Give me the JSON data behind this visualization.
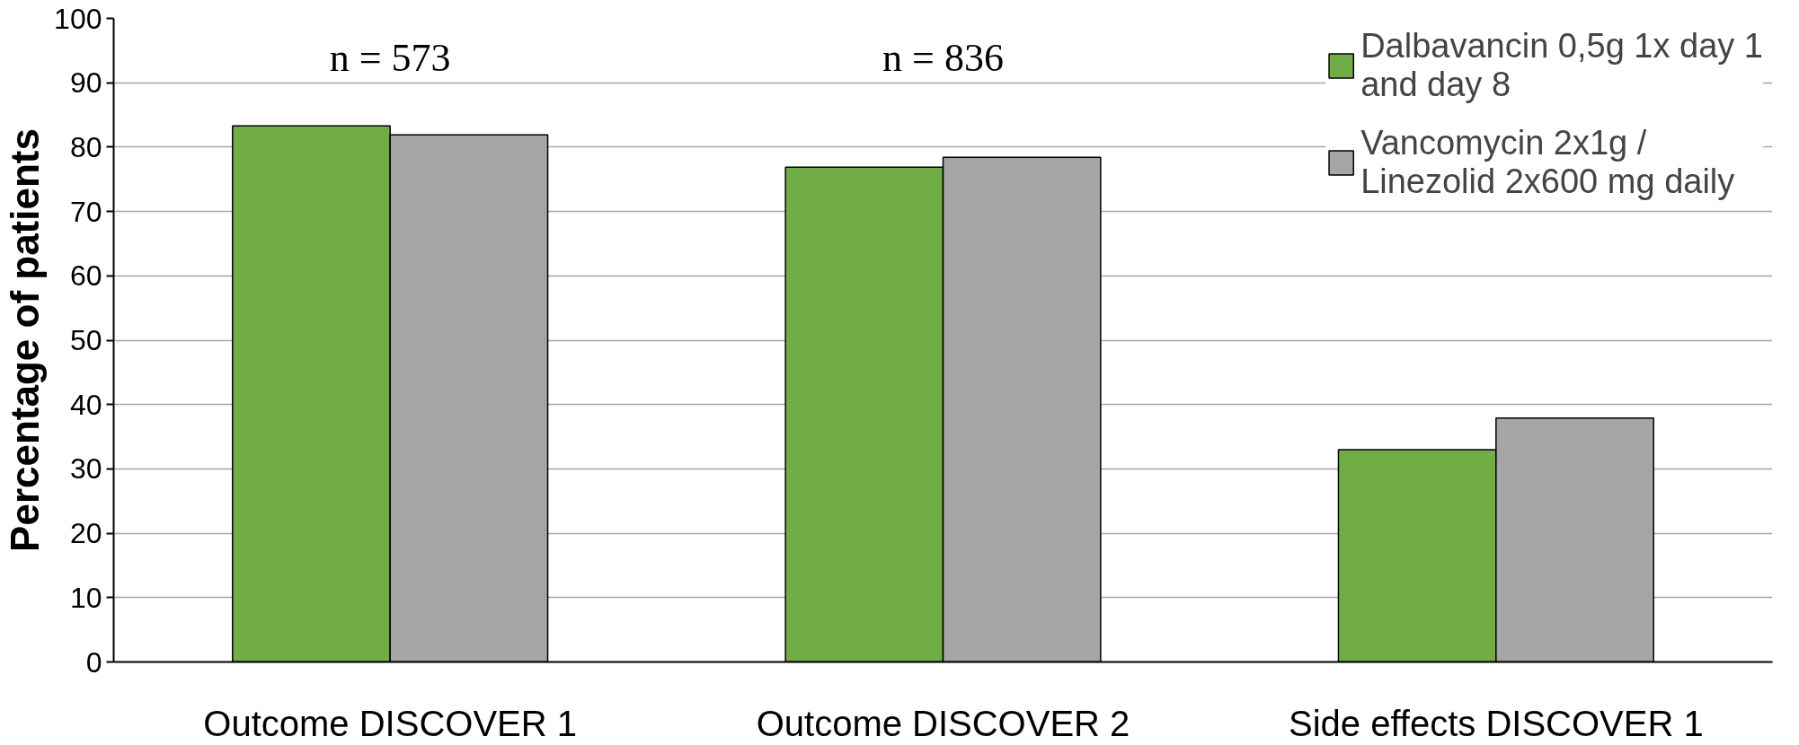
{
  "chart_data": {
    "type": "bar",
    "ylabel": "Percentage of patients",
    "categories": [
      "Outcome DISCOVER 1",
      "Outcome DISCOVER 2",
      "Side effects DISCOVER 1"
    ],
    "series": [
      {
        "name": "Dalbavancin 0,5g 1x day 1 and day 8",
        "color": "#70ad47",
        "values": [
          83.3,
          76.9,
          33.0
        ]
      },
      {
        "name": "Vancomycin 2x1g / Linezolid 2x600 mg daily",
        "color": "#a5a5a5",
        "values": [
          81.9,
          78.4,
          37.9
        ]
      }
    ],
    "ylim": [
      0,
      100
    ],
    "yticks": [
      0,
      10,
      20,
      30,
      40,
      50,
      60,
      70,
      80,
      90,
      100
    ],
    "grid": "y",
    "legend": "top right",
    "annotations": [
      "n = 573",
      "n = 836"
    ]
  }
}
